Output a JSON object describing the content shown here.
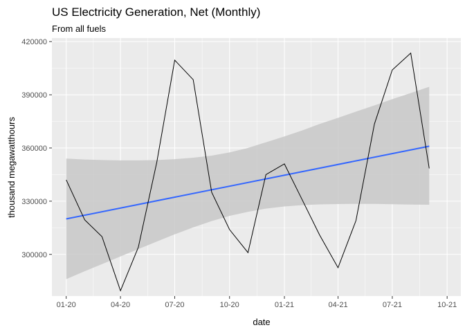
{
  "chart_data": {
    "type": "line",
    "title": "US Electricity Generation, Net (Monthly)",
    "subtitle": "From all fuels",
    "xlabel": "date",
    "ylabel": "thousand megawatthours",
    "x_ticks": [
      "01-20",
      "04-20",
      "07-20",
      "10-20",
      "01-21",
      "04-21",
      "07-21",
      "10-21"
    ],
    "y_ticks": [
      300000,
      330000,
      360000,
      390000,
      420000
    ],
    "y_tick_labels": [
      "300000",
      "330000",
      "360000",
      "390000",
      "420000"
    ],
    "ylim": [
      276500,
      422000
    ],
    "xlim": [
      "2019-12-08",
      "2021-10-24"
    ],
    "series": [
      {
        "x": [
          "2020-01-01",
          "2020-02-01",
          "2020-03-01",
          "2020-04-01",
          "2020-05-01",
          "2020-06-01",
          "2020-07-01",
          "2020-08-01",
          "2020-09-01",
          "2020-10-01",
          "2020-11-01",
          "2020-12-01",
          "2021-01-01",
          "2021-02-01",
          "2021-03-01",
          "2021-04-01",
          "2021-05-01",
          "2021-06-01",
          "2021-07-01",
          "2021-08-01",
          "2021-09-01"
        ],
        "y": [
          342000,
          319500,
          310000,
          279500,
          304000,
          352000,
          409500,
          398500,
          335000,
          314000,
          301000,
          345000,
          351000,
          330000,
          311000,
          292500,
          319000,
          373500,
          404000,
          413500,
          348500
        ]
      }
    ],
    "trend": {
      "start": {
        "x": "2020-01-01",
        "y": 320000
      },
      "end": {
        "x": "2021-09-01",
        "y": 361000
      }
    },
    "confidence_band": {
      "x": [
        "2020-01-01",
        "2020-02-01",
        "2020-03-01",
        "2020-04-01",
        "2020-05-01",
        "2020-06-01",
        "2020-07-01",
        "2020-08-01",
        "2020-09-01",
        "2020-10-01",
        "2020-11-01",
        "2020-12-01",
        "2021-01-01",
        "2021-02-01",
        "2021-03-01",
        "2021-04-01",
        "2021-05-01",
        "2021-06-01",
        "2021-07-01",
        "2021-08-01",
        "2021-09-01"
      ],
      "upper": [
        354000,
        353500,
        353200,
        353000,
        353000,
        353200,
        353700,
        354500,
        355700,
        357500,
        360000,
        363200,
        366500,
        370000,
        373500,
        377000,
        380500,
        384000,
        387500,
        391000,
        394500
      ],
      "lower": [
        286000,
        290500,
        294500,
        298800,
        303000,
        307200,
        311300,
        315200,
        318800,
        321700,
        324000,
        325800,
        327000,
        327800,
        328200,
        328400,
        328500,
        328500,
        328300,
        328100,
        328000
      ]
    },
    "colors": {
      "panel": "#ebebeb",
      "grid": "#ffffff",
      "line": "#000000",
      "trend": "#3366ff",
      "band": "#c8c8c8"
    }
  }
}
